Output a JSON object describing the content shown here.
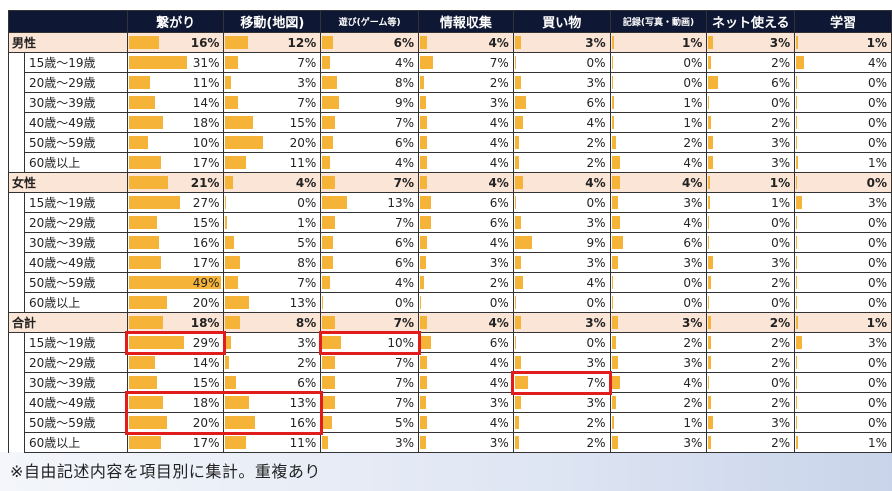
{
  "headers": [
    "繋がり",
    "移動(地図)",
    "遊び(ゲーム等)",
    "情報収集",
    "買い物",
    "記録(写真・動画)",
    "ネット使える",
    "学習"
  ],
  "colors": {
    "bar": "#f5b337",
    "header_bg": "#0e1733",
    "group_bg": "#fbe5d6",
    "highlight": "#e11c1c"
  },
  "groups": [
    {
      "label": "男性",
      "values": [
        "16%",
        "12%",
        "6%",
        "4%",
        "3%",
        "1%",
        "3%",
        "1%"
      ],
      "fractions": [
        0.16,
        0.12,
        0.06,
        0.04,
        0.03,
        0.01,
        0.03,
        0.01
      ],
      "rows": [
        {
          "label": "15歳～19歳",
          "values": [
            "31%",
            "7%",
            "4%",
            "7%",
            "0%",
            "0%",
            "2%",
            "4%"
          ],
          "fractions": [
            0.31,
            0.07,
            0.04,
            0.07,
            0,
            0,
            0.02,
            0.04
          ]
        },
        {
          "label": "20歳～29歳",
          "values": [
            "11%",
            "3%",
            "8%",
            "2%",
            "3%",
            "0%",
            "6%",
            "0%"
          ],
          "fractions": [
            0.11,
            0.03,
            0.08,
            0.02,
            0.03,
            0,
            0.06,
            0
          ]
        },
        {
          "label": "30歳～39歳",
          "values": [
            "14%",
            "7%",
            "9%",
            "3%",
            "6%",
            "1%",
            "0%",
            "0%"
          ],
          "fractions": [
            0.14,
            0.07,
            0.09,
            0.03,
            0.06,
            0.01,
            0,
            0
          ]
        },
        {
          "label": "40歳～49歳",
          "values": [
            "18%",
            "15%",
            "7%",
            "4%",
            "4%",
            "1%",
            "2%",
            "0%"
          ],
          "fractions": [
            0.18,
            0.15,
            0.07,
            0.04,
            0.04,
            0.01,
            0.02,
            0
          ]
        },
        {
          "label": "50歳～59歳",
          "values": [
            "10%",
            "20%",
            "6%",
            "4%",
            "2%",
            "2%",
            "3%",
            "0%"
          ],
          "fractions": [
            0.1,
            0.2,
            0.06,
            0.04,
            0.02,
            0.02,
            0.03,
            0
          ]
        },
        {
          "label": "60歳以上",
          "values": [
            "17%",
            "11%",
            "4%",
            "4%",
            "2%",
            "4%",
            "3%",
            "1%"
          ],
          "fractions": [
            0.17,
            0.11,
            0.04,
            0.04,
            0.02,
            0.04,
            0.03,
            0.01
          ]
        }
      ]
    },
    {
      "label": "女性",
      "values": [
        "21%",
        "4%",
        "7%",
        "4%",
        "4%",
        "4%",
        "1%",
        "0%"
      ],
      "fractions": [
        0.21,
        0.04,
        0.07,
        0.04,
        0.04,
        0.04,
        0.01,
        0
      ],
      "rows": [
        {
          "label": "15歳～19歳",
          "values": [
            "27%",
            "0%",
            "13%",
            "6%",
            "0%",
            "3%",
            "1%",
            "3%"
          ],
          "fractions": [
            0.27,
            0,
            0.13,
            0.06,
            0,
            0.03,
            0.01,
            0.03
          ]
        },
        {
          "label": "20歳～29歳",
          "values": [
            "15%",
            "1%",
            "7%",
            "6%",
            "3%",
            "4%",
            "0%",
            "0%"
          ],
          "fractions": [
            0.15,
            0.01,
            0.07,
            0.06,
            0.03,
            0.04,
            0,
            0
          ]
        },
        {
          "label": "30歳～39歳",
          "values": [
            "16%",
            "5%",
            "6%",
            "4%",
            "9%",
            "6%",
            "0%",
            "0%"
          ],
          "fractions": [
            0.16,
            0.05,
            0.06,
            0.04,
            0.09,
            0.06,
            0,
            0
          ]
        },
        {
          "label": "40歳～49歳",
          "values": [
            "17%",
            "8%",
            "6%",
            "3%",
            "3%",
            "3%",
            "3%",
            "0%"
          ],
          "fractions": [
            0.17,
            0.08,
            0.06,
            0.03,
            0.03,
            0.03,
            0.03,
            0
          ]
        },
        {
          "label": "50歳～59歳",
          "values": [
            "49%",
            "7%",
            "4%",
            "2%",
            "4%",
            "0%",
            "2%",
            "0%"
          ],
          "fractions": [
            0.49,
            0.07,
            0.04,
            0.02,
            0.04,
            0,
            0.02,
            0
          ]
        },
        {
          "label": "60歳以上",
          "values": [
            "20%",
            "13%",
            "0%",
            "0%",
            "0%",
            "0%",
            "0%",
            "0%"
          ],
          "fractions": [
            0.2,
            0.13,
            0,
            0,
            0,
            0,
            0,
            0
          ]
        }
      ]
    },
    {
      "label": "合計",
      "values": [
        "18%",
        "8%",
        "7%",
        "4%",
        "3%",
        "3%",
        "2%",
        "1%"
      ],
      "fractions": [
        0.18,
        0.08,
        0.07,
        0.04,
        0.03,
        0.03,
        0.02,
        0.01
      ],
      "rows": [
        {
          "label": "15歳～19歳",
          "values": [
            "29%",
            "3%",
            "10%",
            "6%",
            "0%",
            "2%",
            "2%",
            "3%"
          ],
          "fractions": [
            0.29,
            0.03,
            0.1,
            0.06,
            0,
            0.02,
            0.02,
            0.03
          ]
        },
        {
          "label": "20歳～29歳",
          "values": [
            "14%",
            "2%",
            "7%",
            "4%",
            "3%",
            "3%",
            "2%",
            "0%"
          ],
          "fractions": [
            0.14,
            0.02,
            0.07,
            0.04,
            0.03,
            0.03,
            0.02,
            0
          ]
        },
        {
          "label": "30歳～39歳",
          "values": [
            "15%",
            "6%",
            "7%",
            "4%",
            "7%",
            "4%",
            "0%",
            "0%"
          ],
          "fractions": [
            0.15,
            0.06,
            0.07,
            0.04,
            0.07,
            0.04,
            0,
            0
          ]
        },
        {
          "label": "40歳～49歳",
          "values": [
            "18%",
            "13%",
            "7%",
            "3%",
            "3%",
            "2%",
            "2%",
            "0%"
          ],
          "fractions": [
            0.18,
            0.13,
            0.07,
            0.03,
            0.03,
            0.02,
            0.02,
            0
          ]
        },
        {
          "label": "50歳～59歳",
          "values": [
            "20%",
            "16%",
            "5%",
            "4%",
            "2%",
            "1%",
            "3%",
            "0%"
          ],
          "fractions": [
            0.2,
            0.16,
            0.05,
            0.04,
            0.02,
            0.01,
            0.03,
            0
          ]
        },
        {
          "label": "60歳以上",
          "values": [
            "17%",
            "11%",
            "3%",
            "3%",
            "2%",
            "3%",
            "2%",
            "1%"
          ],
          "fractions": [
            0.17,
            0.11,
            0.03,
            0.03,
            0.02,
            0.03,
            0.02,
            0.01
          ]
        }
      ]
    }
  ],
  "highlights": [
    {
      "group": 2,
      "row": 0,
      "col": 0,
      "rows": 1,
      "cols": 1
    },
    {
      "group": 2,
      "row": 0,
      "col": 2,
      "rows": 1,
      "cols": 1
    },
    {
      "group": 2,
      "row": 2,
      "col": 4,
      "rows": 1,
      "cols": 1
    },
    {
      "group": 2,
      "row": 3,
      "col": 0,
      "rows": 2,
      "cols": 2
    }
  ],
  "footnote": "※自由記述内容を項目別に集計。重複あり"
}
